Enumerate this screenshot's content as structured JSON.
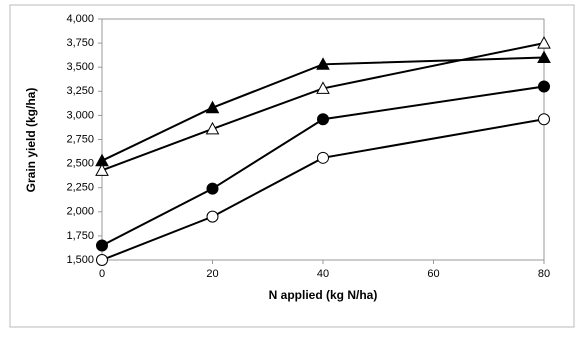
{
  "chart_data": {
    "type": "line",
    "xlabel": "N applied (kg N/ha)",
    "ylabel": "Grain yield (kg/ha)",
    "x": [
      0,
      20,
      40,
      80
    ],
    "xlim": [
      0,
      80
    ],
    "xticks": [
      0,
      20,
      40,
      60,
      80
    ],
    "ylim": [
      1500,
      4000
    ],
    "yticks": [
      {
        "value": 1500,
        "label": "1,500"
      },
      {
        "value": 1750,
        "label": "1,750"
      },
      {
        "value": 2000,
        "label": "2,000"
      },
      {
        "value": 2250,
        "label": "2,250"
      },
      {
        "value": 2500,
        "label": "2,500"
      },
      {
        "value": 2750,
        "label": "2,750"
      },
      {
        "value": 3000,
        "label": "3,000"
      },
      {
        "value": 3250,
        "label": "3,250"
      },
      {
        "value": 3500,
        "label": "3,500"
      },
      {
        "value": 3750,
        "label": "3,750"
      },
      {
        "value": 4000,
        "label": "4,000"
      }
    ],
    "grid": false,
    "series": [
      {
        "color": "#000000",
        "marker": "triangle",
        "filled": true,
        "values": [
          2530,
          3080,
          3530,
          3600
        ]
      },
      {
        "color": "#000000",
        "marker": "triangle",
        "filled": false,
        "values": [
          2430,
          2860,
          3280,
          3750
        ]
      },
      {
        "color": "#000000",
        "marker": "circle",
        "filled": true,
        "values": [
          1650,
          2240,
          2960,
          3300
        ]
      },
      {
        "color": "#000000",
        "marker": "circle",
        "filled": false,
        "values": [
          1500,
          1950,
          2560,
          2960
        ]
      }
    ]
  }
}
